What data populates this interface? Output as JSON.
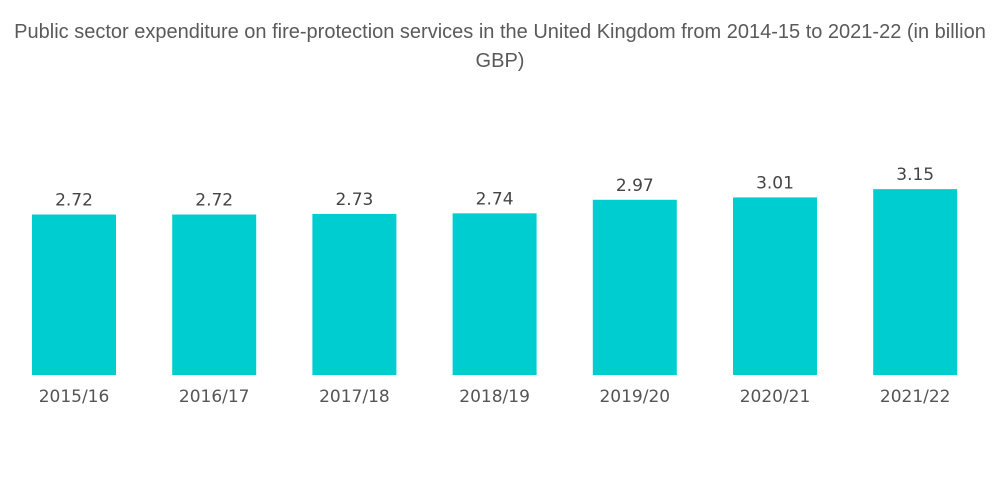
{
  "chart_data": {
    "type": "bar",
    "title": "Public sector expenditure on fire-protection services in the United Kingdom from 2014-15 to 2021-22 (in billion GBP)",
    "categories": [
      "2015/16",
      "2016/17",
      "2017/18",
      "2018/19",
      "2019/20",
      "2020/21",
      "2021/22"
    ],
    "values": [
      2.72,
      2.72,
      2.73,
      2.74,
      2.97,
      3.01,
      3.15
    ],
    "value_labels": [
      "2.72",
      "2.72",
      "2.73",
      "2.74",
      "2.97",
      "3.01",
      "3.15"
    ],
    "xlabel": "",
    "ylabel": "",
    "ylim": [
      0,
      3.4
    ],
    "grid": false,
    "legend": "none",
    "colors": {
      "bar": "#00CDCF"
    }
  }
}
